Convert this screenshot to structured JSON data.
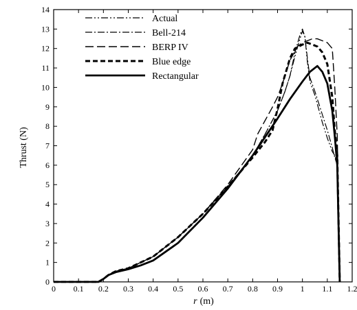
{
  "chart_data": {
    "type": "line",
    "title": "",
    "xlabel": "r (m)",
    "xlabel_var": "r",
    "xlabel_unit": "(m)",
    "ylabel": "Thrust (N)",
    "xlim": [
      0,
      1.2
    ],
    "ylim": [
      0,
      14
    ],
    "xticks": [
      "0",
      "0.1",
      "0.2",
      "0.3",
      "0.4",
      "0.5",
      "0.6",
      "0.7",
      "0.8",
      "0.9",
      "1",
      "1.1",
      "1.2"
    ],
    "yticks": [
      "0",
      "1",
      "2",
      "3",
      "4",
      "5",
      "6",
      "7",
      "8",
      "9",
      "10",
      "11",
      "12",
      "13",
      "14"
    ],
    "grid": false,
    "legend_position": "top-left",
    "series": [
      {
        "name": "Actual",
        "style": "dash-dot-dot",
        "x": [
          0,
          0.18,
          0.2,
          0.22,
          0.25,
          0.3,
          0.4,
          0.5,
          0.6,
          0.7,
          0.8,
          0.85,
          0.9,
          0.93,
          0.95,
          0.97,
          0.99,
          1.0,
          1.01,
          1.02,
          1.03,
          1.05,
          1.08,
          1.1,
          1.12,
          1.13,
          1.14,
          1.15
        ],
        "y": [
          0,
          0,
          0.15,
          0.35,
          0.55,
          0.7,
          1.3,
          2.3,
          3.5,
          4.9,
          6.5,
          7.6,
          8.8,
          9.8,
          10.6,
          11.6,
          12.5,
          12.9,
          12.6,
          11.3,
          10.3,
          9.6,
          8.2,
          7.4,
          6.7,
          6.5,
          6.0,
          0
        ]
      },
      {
        "name": "Bell-214",
        "style": "dash-dot",
        "x": [
          0,
          0.18,
          0.2,
          0.22,
          0.25,
          0.3,
          0.4,
          0.5,
          0.6,
          0.7,
          0.8,
          0.85,
          0.9,
          0.93,
          0.95,
          0.97,
          0.99,
          1.0,
          1.01,
          1.02,
          1.03,
          1.05,
          1.08,
          1.1,
          1.12,
          1.13,
          1.14,
          1.15
        ],
        "y": [
          0,
          0,
          0.15,
          0.35,
          0.55,
          0.7,
          1.3,
          2.3,
          3.5,
          4.9,
          6.5,
          7.6,
          8.8,
          9.8,
          10.6,
          11.8,
          12.7,
          13.0,
          12.6,
          11.5,
          10.5,
          9.8,
          8.6,
          7.8,
          6.9,
          6.4,
          6.0,
          0
        ]
      },
      {
        "name": "BERP IV",
        "style": "long-dash",
        "x": [
          0,
          0.18,
          0.2,
          0.22,
          0.25,
          0.3,
          0.4,
          0.5,
          0.6,
          0.7,
          0.8,
          0.82,
          0.85,
          0.88,
          0.9,
          0.92,
          0.95,
          0.98,
          1.0,
          1.02,
          1.04,
          1.06,
          1.08,
          1.1,
          1.12,
          1.13,
          1.14,
          1.15
        ],
        "y": [
          0,
          0,
          0.15,
          0.35,
          0.55,
          0.7,
          1.3,
          2.3,
          3.5,
          5.0,
          6.8,
          7.6,
          8.3,
          9.0,
          9.5,
          10.2,
          11.4,
          12.1,
          12.3,
          12.4,
          12.5,
          12.5,
          12.4,
          12.3,
          12.0,
          10.0,
          7.5,
          0
        ]
      },
      {
        "name": "Blue edge",
        "style": "short-dash",
        "x": [
          0,
          0.18,
          0.2,
          0.22,
          0.25,
          0.3,
          0.4,
          0.5,
          0.6,
          0.7,
          0.8,
          0.85,
          0.88,
          0.9,
          0.92,
          0.95,
          0.97,
          1.0,
          1.02,
          1.04,
          1.06,
          1.08,
          1.1,
          1.12,
          1.13,
          1.14,
          1.15
        ],
        "y": [
          0,
          0,
          0.15,
          0.35,
          0.55,
          0.7,
          1.3,
          2.3,
          3.5,
          4.9,
          6.4,
          7.2,
          7.8,
          8.9,
          10.2,
          11.5,
          12.0,
          12.2,
          12.3,
          12.2,
          12.1,
          11.8,
          11.2,
          9.5,
          7.8,
          6.5,
          0
        ]
      },
      {
        "name": "Rectangular",
        "style": "solid-bold",
        "x": [
          0,
          0.18,
          0.2,
          0.22,
          0.25,
          0.3,
          0.35,
          0.4,
          0.5,
          0.6,
          0.7,
          0.8,
          0.9,
          0.95,
          1.0,
          1.03,
          1.05,
          1.06,
          1.08,
          1.1,
          1.12,
          1.13,
          1.14,
          1.15
        ],
        "y": [
          0,
          0,
          0.15,
          0.35,
          0.5,
          0.65,
          0.85,
          1.1,
          2.0,
          3.3,
          4.8,
          6.5,
          8.4,
          9.4,
          10.3,
          10.8,
          11.0,
          11.1,
          10.8,
          10.2,
          8.8,
          7.5,
          6.0,
          0
        ]
      }
    ]
  }
}
